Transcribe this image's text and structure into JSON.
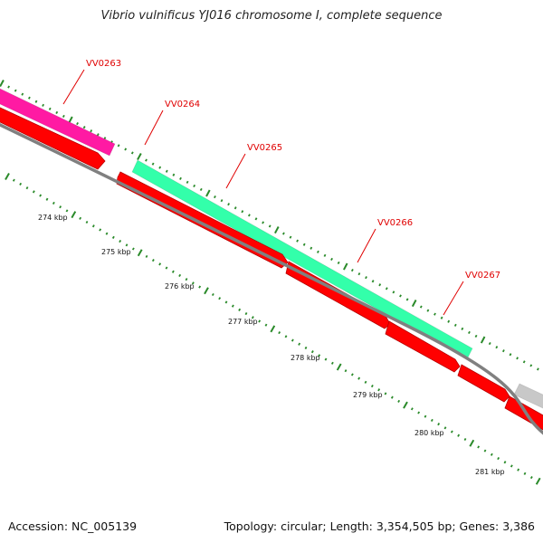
{
  "title": "Vibrio vulnificus YJ016 chromosome I, complete sequence",
  "footer": {
    "accession": "Accession: NC_005139",
    "summary": "Topology: circular; Length: 3,354,505 bp; Genes: 3,386"
  },
  "genes": [
    {
      "id": "VV0263",
      "label": "VV0263"
    },
    {
      "id": "VV0264",
      "label": "VV0264"
    },
    {
      "id": "VV0265",
      "label": "VV0265"
    },
    {
      "id": "VV0266",
      "label": "VV0266"
    },
    {
      "id": "VV0267",
      "label": "VV0267"
    }
  ],
  "scale_labels": [
    "274 kbp",
    "275 kbp",
    "276 kbp",
    "277 kbp",
    "278 kbp",
    "279 kbp",
    "280 kbp",
    "281 kbp"
  ],
  "colors": {
    "gene_label": "#e00000",
    "cds_red": "#ff0000",
    "feature_magenta": "#ff1aa3",
    "feature_green": "#33ffaa",
    "feature_grey": "#c8c8c8",
    "backbone": "#808080",
    "tick": "#2a8a2a",
    "text": "#111111"
  }
}
